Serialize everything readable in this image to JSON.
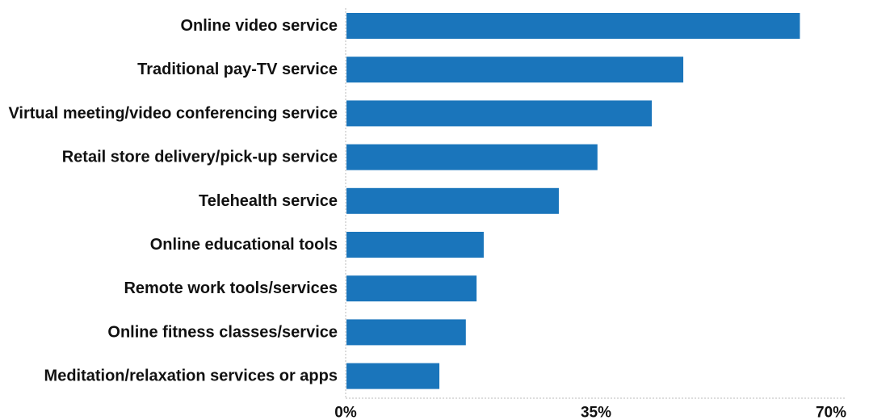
{
  "chart_data": {
    "type": "bar",
    "orientation": "horizontal",
    "categories": [
      "Online video service",
      "Traditional pay-TV service",
      "Virtual meeting/video conferencing service",
      "Retail store delivery/pick-up service",
      "Telehealth service",
      "Online educational tools",
      "Remote work tools/services",
      "Online fitness classes/service",
      "Meditation/relaxation services or apps"
    ],
    "values": [
      63.5,
      47.2,
      42.8,
      35.2,
      29.8,
      19.3,
      18.3,
      16.8,
      13.1
    ],
    "xlim": [
      0,
      70
    ],
    "x_ticks": [
      "0%",
      "35%",
      "70%"
    ],
    "tick_values": [
      0,
      35,
      70
    ],
    "title": "",
    "xlabel": "",
    "ylabel": "",
    "grid": false,
    "bar_color": "#1a75bb",
    "axis_color": "#bbbbbb"
  }
}
